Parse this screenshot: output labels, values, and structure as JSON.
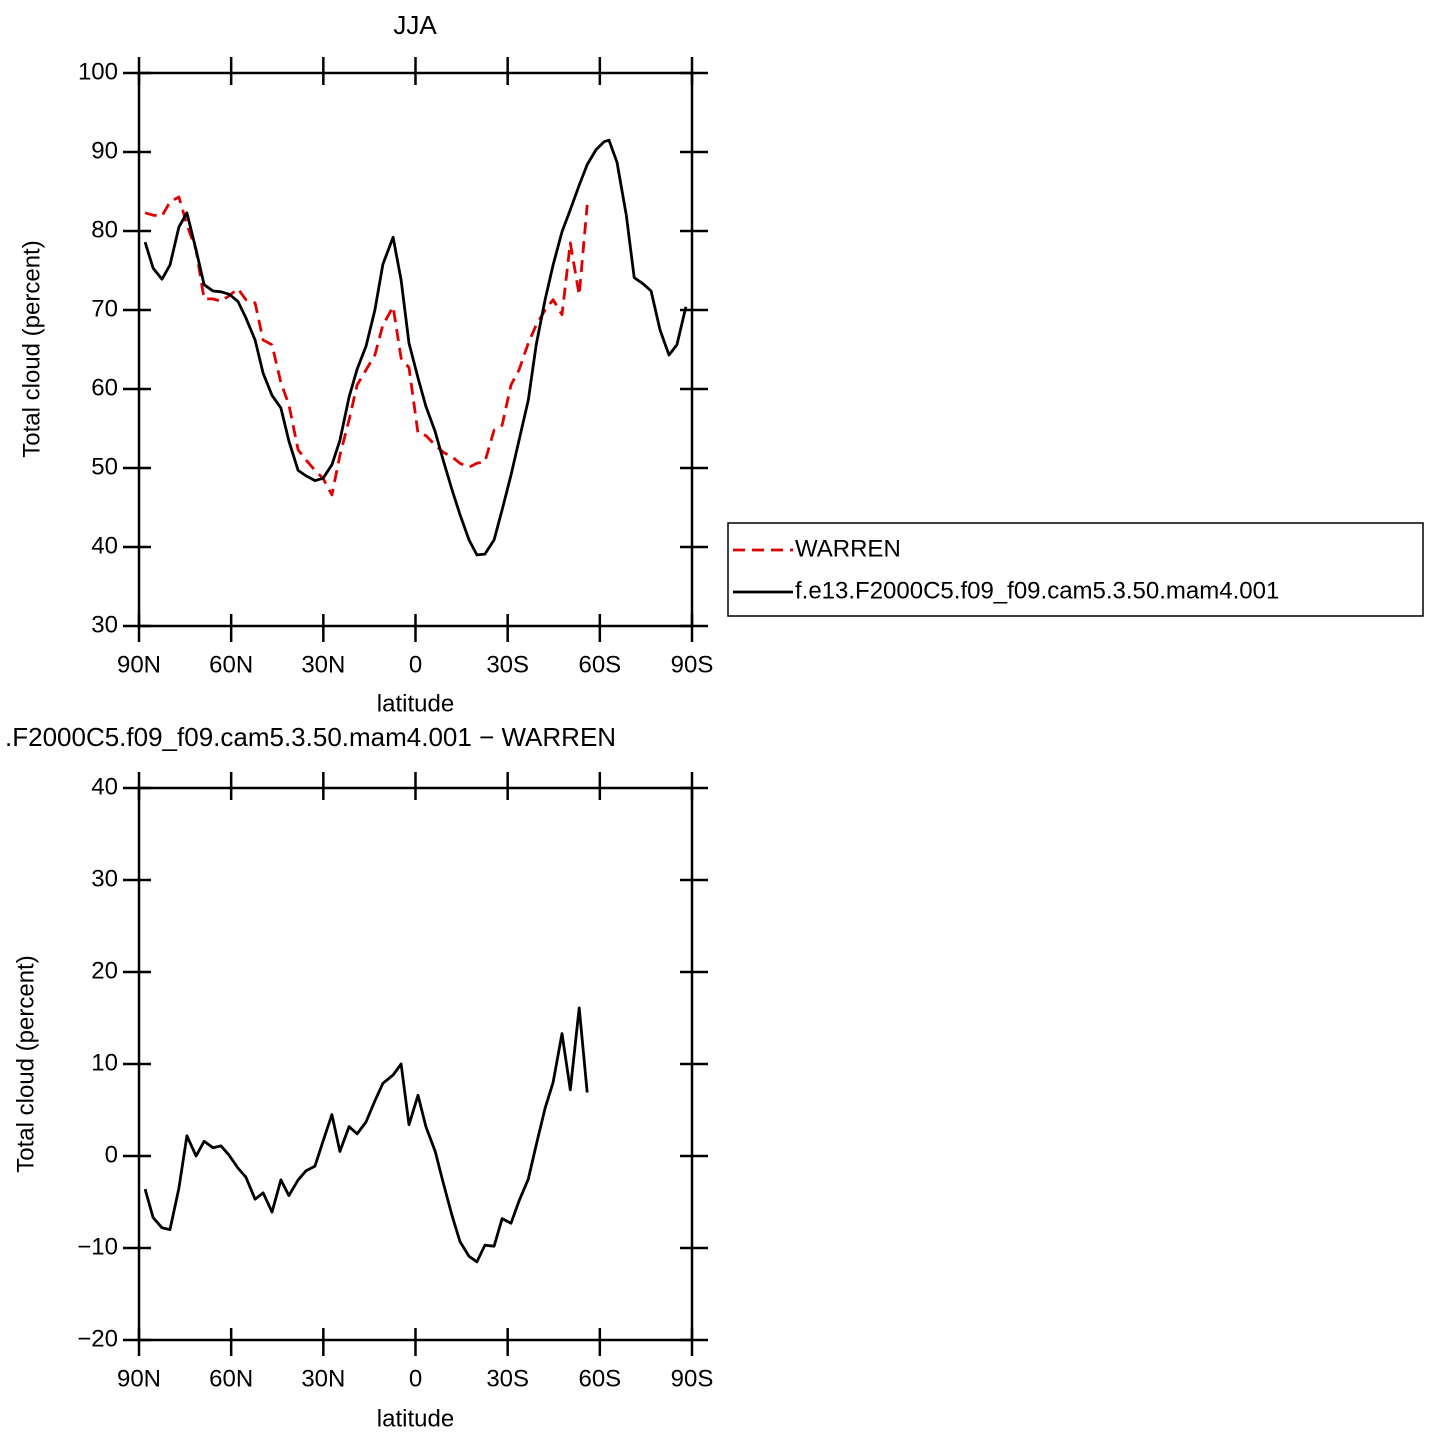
{
  "chart_data": [
    {
      "type": "line",
      "title": "JJA",
      "xlabel": "latitude",
      "ylabel": "Total cloud (percent)",
      "x": [
        88.0,
        85.4,
        82.5,
        79.9,
        77.0,
        74.4,
        71.4,
        68.8,
        65.9,
        63.3,
        60.7,
        57.8,
        55.2,
        52.2,
        49.6,
        46.7,
        43.8,
        41.2,
        38.2,
        35.6,
        32.7,
        30.1,
        27.2,
        24.6,
        21.6,
        19.0,
        16.1,
        13.2,
        10.6,
        7.3,
        4.7,
        2.1,
        -0.8,
        -3.4,
        -6.4,
        -9.0,
        -11.9,
        -14.5,
        -17.4,
        -20.0,
        -22.6,
        -25.6,
        -28.2,
        -31.1,
        -33.7,
        -36.7,
        -39.3,
        -42.2,
        -44.8,
        -47.7,
        -50.4,
        -53.3,
        -55.9,
        -58.8,
        -61.4,
        -63.0,
        -65.6,
        -68.6,
        -71.2,
        -74.1,
        -76.7,
        -79.6,
        -82.5,
        -85.1,
        -88.0
      ],
      "series": [
        {
          "name": "WARREN",
          "color": "#e00000",
          "dash": true,
          "values": [
            82.3,
            82.0,
            81.9,
            83.7,
            84.3,
            80.8,
            77.6,
            71.4,
            71.4,
            71.1,
            71.8,
            72.7,
            71.3,
            70.9,
            66.2,
            65.6,
            60.8,
            58.0,
            52.3,
            51.0,
            49.7,
            48.7,
            46.6,
            51.6,
            56.1,
            60.5,
            62.4,
            64.3,
            68.1,
            70.4,
            63.9,
            62.7,
            54.4,
            54.1,
            52.9,
            52.0,
            51.4,
            50.6,
            50.1,
            50.6,
            50.8,
            54.8,
            55.4,
            60.5,
            62.4,
            65.8,
            68.1,
            70.0,
            71.3,
            69.4,
            78.5,
            71.9,
            83.3,
            null,
            null,
            null,
            null,
            null,
            null,
            null,
            null,
            null,
            null,
            null,
            null
          ]
        },
        {
          "name": "f.e13.F2000C5.f09_f09.cam5.3.50.mam4.001",
          "color": "#000000",
          "dash": false,
          "values": [
            78.6,
            75.3,
            73.9,
            75.7,
            80.5,
            82.3,
            77.6,
            73.2,
            72.4,
            72.3,
            72.0,
            71.1,
            69.0,
            66.2,
            62.0,
            59.2,
            57.6,
            53.4,
            49.7,
            49.0,
            48.4,
            48.7,
            50.4,
            53.5,
            59.0,
            62.5,
            65.4,
            70.0,
            75.8,
            79.2,
            73.8,
            65.8,
            61.4,
            57.8,
            54.6,
            51.0,
            47.2,
            44.1,
            40.9,
            39.0,
            39.1,
            40.9,
            44.7,
            49.1,
            53.5,
            58.6,
            65.6,
            71.3,
            75.7,
            79.9,
            82.7,
            85.8,
            88.4,
            90.3,
            91.3,
            91.5,
            88.7,
            82.0,
            74.1,
            73.3,
            72.4,
            67.5,
            64.3,
            65.6,
            70.4
          ]
        }
      ],
      "xlim": [
        90,
        -90
      ],
      "xticks": [
        {
          "value": 90,
          "label": "90N"
        },
        {
          "value": 60,
          "label": "60N"
        },
        {
          "value": 30,
          "label": "30N"
        },
        0,
        {
          "value": -30,
          "label": "30S"
        },
        {
          "value": -60,
          "label": "60S"
        },
        {
          "value": -90,
          "label": "90S"
        }
      ],
      "ylim": [
        30,
        100
      ],
      "yticks": [
        30,
        40,
        50,
        60,
        70,
        80,
        90,
        100
      ],
      "legend": "right"
    },
    {
      "type": "line",
      "title": ".F2000C5.f09_f09.cam5.3.50.mam4.001  −  WARREN",
      "xlabel": "latitude",
      "ylabel": "Total cloud (percent)",
      "x": [
        88.0,
        85.4,
        82.5,
        79.9,
        77.0,
        74.4,
        71.4,
        68.8,
        65.9,
        63.3,
        60.7,
        57.8,
        55.2,
        52.2,
        49.6,
        46.7,
        43.8,
        41.2,
        38.2,
        35.6,
        32.7,
        30.1,
        27.2,
        24.6,
        21.6,
        19.0,
        16.1,
        13.2,
        10.6,
        7.3,
        4.7,
        2.1,
        -0.8,
        -3.4,
        -6.4,
        -9.0,
        -11.9,
        -14.5,
        -17.4,
        -20.0,
        -22.6,
        -25.6,
        -28.2,
        -31.1,
        -33.7,
        -36.7,
        -39.3,
        -42.2,
        -44.8,
        -47.7,
        -50.4,
        -53.3,
        -55.9,
        -58.8,
        -61.4,
        -63.0,
        -65.6,
        -68.6,
        -71.2,
        -74.1,
        -76.7,
        -79.6,
        -82.5,
        -85.1,
        -88.0
      ],
      "series": [
        {
          "color": "#000000",
          "dash": false,
          "values": [
            -3.6,
            -6.7,
            -7.8,
            -8.0,
            -3.5,
            2.2,
            0.0,
            1.6,
            0.9,
            1.1,
            0.1,
            -1.3,
            -2.3,
            -4.7,
            -4.0,
            -6.1,
            -2.6,
            -4.3,
            -2.6,
            -1.6,
            -1.1,
            1.6,
            4.5,
            0.5,
            3.2,
            2.4,
            3.7,
            6.0,
            7.9,
            8.8,
            10.0,
            3.4,
            6.6,
            3.2,
            0.5,
            -2.9,
            -6.5,
            -9.3,
            -10.9,
            -11.5,
            -9.7,
            -9.8,
            -6.8,
            -7.3,
            -4.9,
            -2.5,
            1.2,
            5.2,
            8.0,
            13.3,
            7.2,
            16.1,
            6.9,
            null,
            null,
            null,
            null,
            null,
            null,
            null,
            null,
            null,
            null,
            null,
            null
          ]
        }
      ],
      "xlim": [
        90,
        -90
      ],
      "xticks": [
        {
          "value": 90,
          "label": "90N"
        },
        {
          "value": 60,
          "label": "60N"
        },
        {
          "value": 30,
          "label": "30N"
        },
        0,
        {
          "value": -30,
          "label": "30S"
        },
        {
          "value": -60,
          "label": "60S"
        },
        {
          "value": -90,
          "label": "90S"
        }
      ],
      "ylim": [
        -20,
        40
      ],
      "yticks": [
        {
          "value": -20,
          "label": "−20"
        },
        {
          "value": -10,
          "label": "−10"
        },
        0,
        10,
        20,
        30,
        40
      ]
    }
  ]
}
